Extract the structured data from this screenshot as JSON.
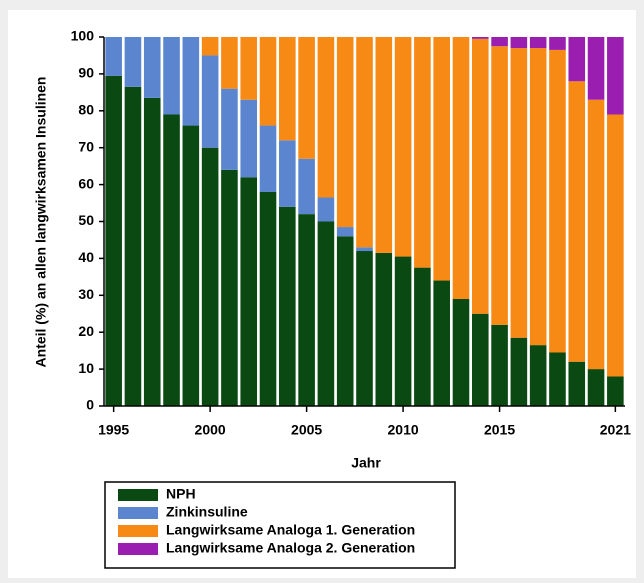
{
  "chart_data": {
    "type": "stacked_bar",
    "x_label": "Jahr",
    "y_label": "Anteil (%) an allen langwirksamen Insulinen",
    "x": [
      1995,
      1996,
      1997,
      1998,
      1999,
      2000,
      2001,
      2002,
      2003,
      2004,
      2005,
      2006,
      2007,
      2008,
      2009,
      2010,
      2011,
      2012,
      2013,
      2014,
      2015,
      2016,
      2017,
      2018,
      2019,
      2020,
      2021
    ],
    "xlim": [
      1994.5,
      2021.5
    ],
    "xticks": [
      1995,
      2000,
      2005,
      2010,
      2015,
      2021
    ],
    "ylim": [
      0,
      100
    ],
    "yticks": [
      0,
      10,
      20,
      30,
      40,
      50,
      60,
      70,
      80,
      90,
      100
    ],
    "series": [
      {
        "name": "NPH",
        "color": "#0a4a12",
        "values": [
          89.5,
          86.5,
          83.5,
          79,
          76,
          70,
          64,
          62,
          58,
          54,
          52,
          50,
          46,
          42,
          41.5,
          40.5,
          37.5,
          34,
          29,
          25,
          22,
          18.5,
          16.5,
          14.5,
          12,
          10,
          8
        ]
      },
      {
        "name": "Zinkinsuline",
        "color": "#5b86cf",
        "values": [
          10.5,
          13.5,
          16.5,
          21,
          24,
          25,
          22,
          21,
          18,
          18,
          15,
          6.5,
          2.5,
          1,
          0,
          0,
          0,
          0,
          0,
          0,
          0,
          0,
          0,
          0,
          0,
          0,
          0
        ]
      },
      {
        "name": "Langwirksame Analoga 1. Generation",
        "color": "#f78a14",
        "values": [
          0,
          0,
          0,
          0,
          0,
          5,
          14,
          17,
          24,
          28,
          33,
          43.5,
          51.5,
          57,
          58.5,
          59.5,
          62.5,
          66,
          71,
          74.5,
          75.5,
          78.5,
          80.5,
          82,
          76,
          73,
          71
        ]
      },
      {
        "name": "Langwirksame Analoga 2. Generation",
        "color": "#9a1fb0",
        "values": [
          0,
          0,
          0,
          0,
          0,
          0,
          0,
          0,
          0,
          0,
          0,
          0,
          0,
          0,
          0,
          0,
          0,
          0,
          0,
          0.5,
          2.5,
          3,
          3,
          3.5,
          12,
          17,
          21
        ]
      }
    ]
  }
}
